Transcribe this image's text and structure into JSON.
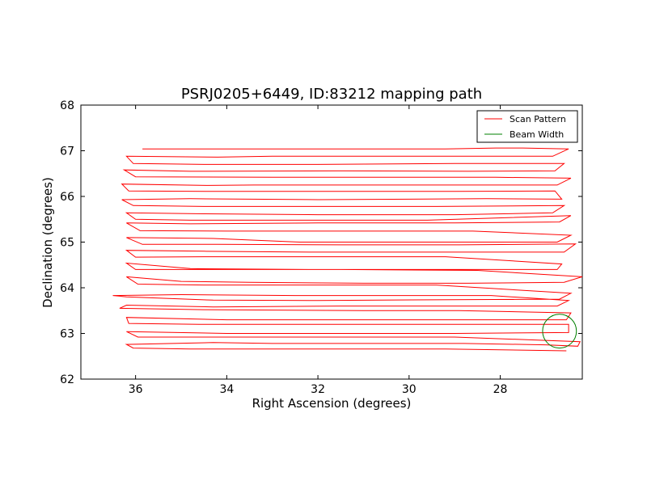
{
  "chart_data": {
    "type": "line",
    "title": "PSRJ0205+6449, ID:83212 mapping path",
    "xlabel": "Right Ascension (degrees)",
    "ylabel": "Declination (degrees)",
    "xlim": [
      37.2,
      26.2
    ],
    "ylim": [
      62,
      68
    ],
    "xticks": [
      36,
      34,
      32,
      30,
      28
    ],
    "xtick_labels": [
      "36",
      "34",
      "32",
      "30",
      "28"
    ],
    "yticks": [
      62,
      63,
      64,
      65,
      66,
      67,
      68
    ],
    "ytick_labels": [
      "62",
      "63",
      "64",
      "65",
      "66",
      "67",
      "68"
    ],
    "legend": {
      "position": "top-right",
      "entries": [
        {
          "label": "Scan Pattern",
          "color": "#ff0000"
        },
        {
          "label": "Beam Width",
          "color": "#008000"
        }
      ]
    },
    "series": [
      {
        "name": "Scan Pattern",
        "color": "#ff0000",
        "points": [
          [
            35.85,
            67.04
          ],
          [
            34.0,
            67.04
          ],
          [
            31.0,
            67.04
          ],
          [
            29.2,
            67.04
          ],
          [
            28.1,
            67.06
          ],
          [
            27.5,
            67.06
          ],
          [
            26.5,
            67.04
          ],
          [
            26.85,
            66.88
          ],
          [
            30.0,
            66.88
          ],
          [
            33.0,
            66.88
          ],
          [
            34.2,
            66.86
          ],
          [
            36.2,
            66.88
          ],
          [
            36.05,
            66.72
          ],
          [
            34.5,
            66.7
          ],
          [
            32.0,
            66.7
          ],
          [
            29.0,
            66.72
          ],
          [
            28.0,
            66.72
          ],
          [
            26.6,
            66.72
          ],
          [
            26.8,
            66.56
          ],
          [
            28.7,
            66.55
          ],
          [
            31.5,
            66.56
          ],
          [
            34.8,
            66.55
          ],
          [
            36.25,
            66.58
          ],
          [
            36.0,
            66.43
          ],
          [
            33.0,
            66.42
          ],
          [
            29.6,
            66.42
          ],
          [
            28.1,
            66.42
          ],
          [
            26.45,
            66.4
          ],
          [
            26.75,
            66.25
          ],
          [
            29.8,
            66.25
          ],
          [
            33.4,
            66.25
          ],
          [
            34.4,
            66.24
          ],
          [
            36.3,
            66.27
          ],
          [
            36.15,
            66.12
          ],
          [
            34.3,
            66.11
          ],
          [
            31.7,
            66.11
          ],
          [
            29.0,
            66.11
          ],
          [
            26.8,
            66.12
          ],
          [
            26.65,
            65.94
          ],
          [
            28.3,
            65.95
          ],
          [
            32.0,
            65.93
          ],
          [
            34.8,
            65.95
          ],
          [
            36.3,
            65.93
          ],
          [
            36.05,
            65.8
          ],
          [
            34.5,
            65.78
          ],
          [
            31.2,
            65.78
          ],
          [
            29.4,
            65.78
          ],
          [
            26.6,
            65.8
          ],
          [
            26.85,
            65.64
          ],
          [
            29.0,
            65.6
          ],
          [
            32.0,
            65.6
          ],
          [
            34.5,
            65.62
          ],
          [
            36.2,
            65.64
          ],
          [
            36.0,
            65.5
          ],
          [
            34.8,
            65.48
          ],
          [
            32.0,
            65.48
          ],
          [
            29.6,
            65.48
          ],
          [
            26.45,
            65.58
          ],
          [
            26.7,
            65.44
          ],
          [
            29.0,
            65.42
          ],
          [
            32.0,
            65.42
          ],
          [
            34.8,
            65.4
          ],
          [
            36.2,
            65.42
          ],
          [
            35.9,
            65.25
          ],
          [
            34.0,
            65.24
          ],
          [
            31.2,
            65.24
          ],
          [
            28.6,
            65.24
          ],
          [
            26.45,
            65.15
          ],
          [
            26.75,
            65.0
          ],
          [
            29.0,
            65.0
          ],
          [
            32.4,
            65.0
          ],
          [
            34.3,
            65.08
          ],
          [
            36.2,
            65.1
          ],
          [
            35.85,
            64.95
          ],
          [
            34.2,
            64.95
          ],
          [
            31.5,
            64.94
          ],
          [
            28.9,
            64.94
          ],
          [
            26.35,
            64.96
          ],
          [
            26.6,
            64.78
          ],
          [
            28.9,
            64.78
          ],
          [
            32.2,
            64.78
          ],
          [
            34.5,
            64.8
          ],
          [
            36.2,
            64.82
          ],
          [
            36.0,
            64.67
          ],
          [
            34.5,
            64.68
          ],
          [
            31.7,
            64.68
          ],
          [
            29.2,
            64.68
          ],
          [
            26.65,
            64.52
          ],
          [
            26.75,
            64.4
          ],
          [
            29.0,
            64.4
          ],
          [
            32.2,
            64.4
          ],
          [
            34.8,
            64.42
          ],
          [
            36.2,
            64.54
          ],
          [
            36.0,
            64.4
          ],
          [
            34.1,
            64.4
          ],
          [
            31.5,
            64.4
          ],
          [
            28.5,
            64.38
          ],
          [
            26.2,
            64.24
          ],
          [
            26.6,
            64.12
          ],
          [
            28.7,
            64.1
          ],
          [
            31.0,
            64.1
          ],
          [
            33.5,
            64.12
          ],
          [
            35.0,
            64.14
          ],
          [
            36.2,
            64.24
          ],
          [
            35.95,
            64.08
          ],
          [
            34.5,
            64.06
          ],
          [
            32.0,
            64.06
          ],
          [
            29.4,
            64.06
          ],
          [
            26.45,
            63.88
          ],
          [
            26.7,
            63.75
          ],
          [
            29.0,
            63.74
          ],
          [
            32.0,
            63.72
          ],
          [
            34.3,
            63.73
          ],
          [
            36.2,
            63.8
          ],
          [
            36.5,
            63.83
          ],
          [
            35.0,
            63.85
          ],
          [
            32.5,
            63.83
          ],
          [
            28.2,
            63.83
          ],
          [
            26.5,
            63.72
          ],
          [
            26.75,
            63.6
          ],
          [
            28.8,
            63.6
          ],
          [
            31.5,
            63.6
          ],
          [
            34.3,
            63.58
          ],
          [
            36.2,
            63.62
          ],
          [
            36.35,
            63.55
          ],
          [
            34.5,
            63.52
          ],
          [
            31.0,
            63.5
          ],
          [
            28.9,
            63.5
          ],
          [
            26.45,
            63.45
          ],
          [
            26.55,
            63.3
          ],
          [
            29.0,
            63.3
          ],
          [
            31.5,
            63.3
          ],
          [
            34.0,
            63.3
          ],
          [
            36.2,
            63.35
          ],
          [
            36.15,
            63.22
          ],
          [
            34.6,
            63.2
          ],
          [
            31.8,
            63.2
          ],
          [
            29.0,
            63.2
          ],
          [
            26.5,
            63.2
          ],
          [
            26.5,
            63.02
          ],
          [
            29.0,
            63.0
          ],
          [
            32.0,
            63.0
          ],
          [
            34.0,
            63.0
          ],
          [
            36.2,
            63.04
          ],
          [
            35.95,
            62.92
          ],
          [
            34.5,
            62.92
          ],
          [
            31.8,
            62.92
          ],
          [
            29.0,
            62.92
          ],
          [
            26.25,
            62.82
          ],
          [
            26.3,
            62.72
          ],
          [
            27.0,
            62.75
          ],
          [
            28.8,
            62.78
          ],
          [
            30.5,
            62.78
          ],
          [
            33.0,
            62.78
          ],
          [
            34.3,
            62.8
          ],
          [
            36.2,
            62.76
          ],
          [
            36.05,
            62.68
          ],
          [
            34.8,
            62.66
          ],
          [
            32.0,
            62.66
          ],
          [
            29.2,
            62.66
          ],
          [
            26.55,
            62.62
          ]
        ]
      }
    ],
    "beam": {
      "name": "Beam Width",
      "color": "#008000",
      "center": [
        26.7,
        63.05
      ],
      "radius_deg": 0.37
    }
  }
}
